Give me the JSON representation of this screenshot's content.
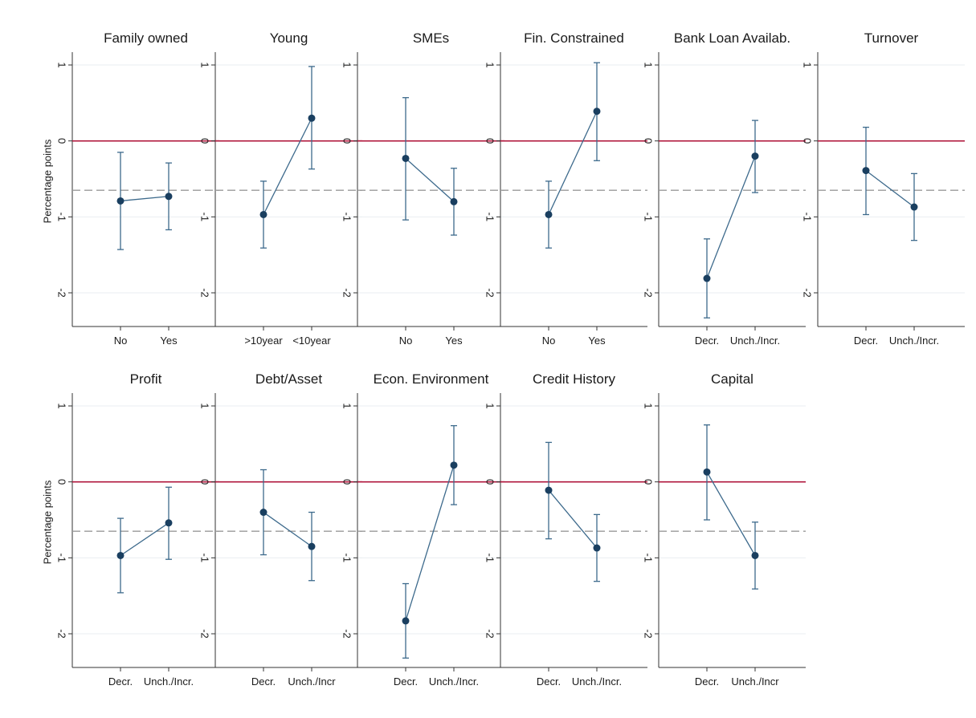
{
  "figure": {
    "colors": {
      "marker": "#1a3f60",
      "line": "#3d6a8c",
      "zero_line": "#b0173c",
      "reference_line": "#999999",
      "grid": "#eaeef1",
      "axis": "#333333"
    }
  },
  "chart_data": [
    {
      "type": "scatter",
      "title": "Family owned",
      "ylabel": "Percentage points",
      "yticks": [
        1,
        0,
        -1,
        -2
      ],
      "ylim": [
        -2.4,
        1.1
      ],
      "categories": [
        "No",
        "Yes"
      ],
      "values": [
        -0.79,
        -0.73
      ],
      "ci_low": [
        -1.43,
        -1.17
      ],
      "ci_high": [
        -0.15,
        -0.29
      ],
      "reference_value": -0.65
    },
    {
      "type": "scatter",
      "title": "Young",
      "ylabel": "",
      "yticks": [
        1,
        0,
        -1,
        -2
      ],
      "ylim": [
        -2.4,
        1.1
      ],
      "categories": [
        ">10year",
        "<10year"
      ],
      "values": [
        -0.97,
        0.3
      ],
      "ci_low": [
        -1.41,
        -0.37
      ],
      "ci_high": [
        -0.53,
        0.98
      ],
      "reference_value": -0.65
    },
    {
      "type": "scatter",
      "title": "SMEs",
      "ylabel": "",
      "yticks": [
        1,
        0,
        -1,
        -2
      ],
      "ylim": [
        -2.4,
        1.1
      ],
      "categories": [
        "No",
        "Yes"
      ],
      "values": [
        -0.23,
        -0.8
      ],
      "ci_low": [
        -1.04,
        -1.24
      ],
      "ci_high": [
        0.57,
        -0.36
      ],
      "reference_value": -0.65
    },
    {
      "type": "scatter",
      "title": "Fin. Constrained",
      "ylabel": "",
      "yticks": [
        1,
        0,
        -1,
        -2
      ],
      "ylim": [
        -2.4,
        1.1
      ],
      "categories": [
        "No",
        "Yes"
      ],
      "values": [
        -0.97,
        0.39
      ],
      "ci_low": [
        -1.41,
        -0.26
      ],
      "ci_high": [
        -0.53,
        1.03
      ],
      "reference_value": -0.65
    },
    {
      "type": "scatter",
      "title": "Bank Loan Availab.",
      "ylabel": "",
      "yticks": [
        1,
        0,
        -1,
        -2
      ],
      "ylim": [
        -2.4,
        1.1
      ],
      "categories": [
        "Decr.",
        "Unch./Incr."
      ],
      "values": [
        -1.81,
        -0.2
      ],
      "ci_low": [
        -2.33,
        -0.68
      ],
      "ci_high": [
        -1.29,
        0.27
      ],
      "reference_value": -0.65
    },
    {
      "type": "scatter",
      "title": "Turnover",
      "ylabel": "",
      "yticks": [
        1,
        0,
        -1,
        -2
      ],
      "ylim": [
        -2.4,
        1.1
      ],
      "categories": [
        "Decr.",
        "Unch./Incr."
      ],
      "values": [
        -0.39,
        -0.87
      ],
      "ci_low": [
        -0.97,
        -1.31
      ],
      "ci_high": [
        0.18,
        -0.43
      ],
      "reference_value": -0.65
    },
    {
      "type": "scatter",
      "title": "Profit",
      "ylabel": "Percentage points",
      "yticks": [
        1,
        0,
        -1,
        -2
      ],
      "ylim": [
        -2.4,
        1.1
      ],
      "categories": [
        "Decr.",
        "Unch./Incr."
      ],
      "values": [
        -0.97,
        -0.54
      ],
      "ci_low": [
        -1.46,
        -1.02
      ],
      "ci_high": [
        -0.48,
        -0.07
      ],
      "reference_value": -0.65
    },
    {
      "type": "scatter",
      "title": "Debt/Asset",
      "ylabel": "",
      "yticks": [
        1,
        0,
        -1,
        -2
      ],
      "ylim": [
        -2.4,
        1.1
      ],
      "categories": [
        "Decr.",
        "Unch./Incr"
      ],
      "values": [
        -0.4,
        -0.85
      ],
      "ci_low": [
        -0.96,
        -1.3
      ],
      "ci_high": [
        0.16,
        -0.4
      ],
      "reference_value": -0.65
    },
    {
      "type": "scatter",
      "title": "Econ. Environment",
      "ylabel": "",
      "yticks": [
        1,
        0,
        -1,
        -2
      ],
      "ylim": [
        -2.4,
        1.1
      ],
      "categories": [
        "Decr.",
        "Unch./Incr."
      ],
      "values": [
        -1.83,
        0.22
      ],
      "ci_low": [
        -2.32,
        -0.3
      ],
      "ci_high": [
        -1.34,
        0.74
      ],
      "reference_value": -0.65
    },
    {
      "type": "scatter",
      "title": "Credit History",
      "ylabel": "",
      "yticks": [
        1,
        0,
        -1,
        -2
      ],
      "ylim": [
        -2.4,
        1.1
      ],
      "categories": [
        "Decr.",
        "Unch./Incr."
      ],
      "values": [
        -0.11,
        -0.87
      ],
      "ci_low": [
        -0.75,
        -1.31
      ],
      "ci_high": [
        0.52,
        -0.43
      ],
      "reference_value": -0.65
    },
    {
      "type": "scatter",
      "title": "Capital",
      "ylabel": "",
      "yticks": [
        1,
        0,
        -1,
        -2
      ],
      "ylim": [
        -2.4,
        1.1
      ],
      "categories": [
        "Decr.",
        "Unch./Incr"
      ],
      "values": [
        0.13,
        -0.97
      ],
      "ci_low": [
        -0.5,
        -1.41
      ],
      "ci_high": [
        0.75,
        -0.53
      ],
      "reference_value": -0.65
    }
  ]
}
